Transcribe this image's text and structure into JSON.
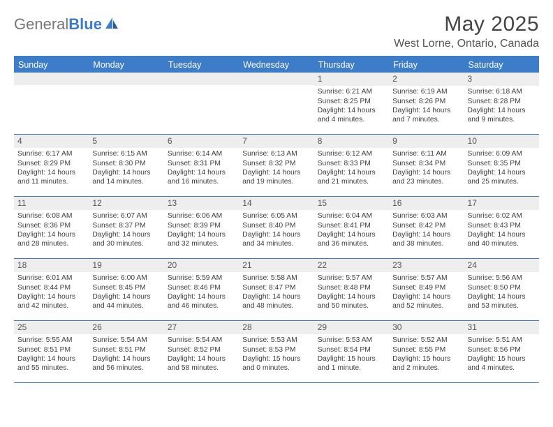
{
  "brand": {
    "part1": "General",
    "part2": "Blue"
  },
  "title": "May 2025",
  "location": "West Lorne, Ontario, Canada",
  "colors": {
    "accent": "#3d7cc9",
    "headerText": "#ffffff",
    "dayNumBg": "#eeeeee",
    "text": "#3d3d3d"
  },
  "daysOfWeek": [
    "Sunday",
    "Monday",
    "Tuesday",
    "Wednesday",
    "Thursday",
    "Friday",
    "Saturday"
  ],
  "weeks": [
    [
      {
        "n": "",
        "sr": "",
        "ss": "",
        "dl": ""
      },
      {
        "n": "",
        "sr": "",
        "ss": "",
        "dl": ""
      },
      {
        "n": "",
        "sr": "",
        "ss": "",
        "dl": ""
      },
      {
        "n": "",
        "sr": "",
        "ss": "",
        "dl": ""
      },
      {
        "n": "1",
        "sr": "Sunrise: 6:21 AM",
        "ss": "Sunset: 8:25 PM",
        "dl": "Daylight: 14 hours and 4 minutes."
      },
      {
        "n": "2",
        "sr": "Sunrise: 6:19 AM",
        "ss": "Sunset: 8:26 PM",
        "dl": "Daylight: 14 hours and 7 minutes."
      },
      {
        "n": "3",
        "sr": "Sunrise: 6:18 AM",
        "ss": "Sunset: 8:28 PM",
        "dl": "Daylight: 14 hours and 9 minutes."
      }
    ],
    [
      {
        "n": "4",
        "sr": "Sunrise: 6:17 AM",
        "ss": "Sunset: 8:29 PM",
        "dl": "Daylight: 14 hours and 11 minutes."
      },
      {
        "n": "5",
        "sr": "Sunrise: 6:15 AM",
        "ss": "Sunset: 8:30 PM",
        "dl": "Daylight: 14 hours and 14 minutes."
      },
      {
        "n": "6",
        "sr": "Sunrise: 6:14 AM",
        "ss": "Sunset: 8:31 PM",
        "dl": "Daylight: 14 hours and 16 minutes."
      },
      {
        "n": "7",
        "sr": "Sunrise: 6:13 AM",
        "ss": "Sunset: 8:32 PM",
        "dl": "Daylight: 14 hours and 19 minutes."
      },
      {
        "n": "8",
        "sr": "Sunrise: 6:12 AM",
        "ss": "Sunset: 8:33 PM",
        "dl": "Daylight: 14 hours and 21 minutes."
      },
      {
        "n": "9",
        "sr": "Sunrise: 6:11 AM",
        "ss": "Sunset: 8:34 PM",
        "dl": "Daylight: 14 hours and 23 minutes."
      },
      {
        "n": "10",
        "sr": "Sunrise: 6:09 AM",
        "ss": "Sunset: 8:35 PM",
        "dl": "Daylight: 14 hours and 25 minutes."
      }
    ],
    [
      {
        "n": "11",
        "sr": "Sunrise: 6:08 AM",
        "ss": "Sunset: 8:36 PM",
        "dl": "Daylight: 14 hours and 28 minutes."
      },
      {
        "n": "12",
        "sr": "Sunrise: 6:07 AM",
        "ss": "Sunset: 8:37 PM",
        "dl": "Daylight: 14 hours and 30 minutes."
      },
      {
        "n": "13",
        "sr": "Sunrise: 6:06 AM",
        "ss": "Sunset: 8:39 PM",
        "dl": "Daylight: 14 hours and 32 minutes."
      },
      {
        "n": "14",
        "sr": "Sunrise: 6:05 AM",
        "ss": "Sunset: 8:40 PM",
        "dl": "Daylight: 14 hours and 34 minutes."
      },
      {
        "n": "15",
        "sr": "Sunrise: 6:04 AM",
        "ss": "Sunset: 8:41 PM",
        "dl": "Daylight: 14 hours and 36 minutes."
      },
      {
        "n": "16",
        "sr": "Sunrise: 6:03 AM",
        "ss": "Sunset: 8:42 PM",
        "dl": "Daylight: 14 hours and 38 minutes."
      },
      {
        "n": "17",
        "sr": "Sunrise: 6:02 AM",
        "ss": "Sunset: 8:43 PM",
        "dl": "Daylight: 14 hours and 40 minutes."
      }
    ],
    [
      {
        "n": "18",
        "sr": "Sunrise: 6:01 AM",
        "ss": "Sunset: 8:44 PM",
        "dl": "Daylight: 14 hours and 42 minutes."
      },
      {
        "n": "19",
        "sr": "Sunrise: 6:00 AM",
        "ss": "Sunset: 8:45 PM",
        "dl": "Daylight: 14 hours and 44 minutes."
      },
      {
        "n": "20",
        "sr": "Sunrise: 5:59 AM",
        "ss": "Sunset: 8:46 PM",
        "dl": "Daylight: 14 hours and 46 minutes."
      },
      {
        "n": "21",
        "sr": "Sunrise: 5:58 AM",
        "ss": "Sunset: 8:47 PM",
        "dl": "Daylight: 14 hours and 48 minutes."
      },
      {
        "n": "22",
        "sr": "Sunrise: 5:57 AM",
        "ss": "Sunset: 8:48 PM",
        "dl": "Daylight: 14 hours and 50 minutes."
      },
      {
        "n": "23",
        "sr": "Sunrise: 5:57 AM",
        "ss": "Sunset: 8:49 PM",
        "dl": "Daylight: 14 hours and 52 minutes."
      },
      {
        "n": "24",
        "sr": "Sunrise: 5:56 AM",
        "ss": "Sunset: 8:50 PM",
        "dl": "Daylight: 14 hours and 53 minutes."
      }
    ],
    [
      {
        "n": "25",
        "sr": "Sunrise: 5:55 AM",
        "ss": "Sunset: 8:51 PM",
        "dl": "Daylight: 14 hours and 55 minutes."
      },
      {
        "n": "26",
        "sr": "Sunrise: 5:54 AM",
        "ss": "Sunset: 8:51 PM",
        "dl": "Daylight: 14 hours and 56 minutes."
      },
      {
        "n": "27",
        "sr": "Sunrise: 5:54 AM",
        "ss": "Sunset: 8:52 PM",
        "dl": "Daylight: 14 hours and 58 minutes."
      },
      {
        "n": "28",
        "sr": "Sunrise: 5:53 AM",
        "ss": "Sunset: 8:53 PM",
        "dl": "Daylight: 15 hours and 0 minutes."
      },
      {
        "n": "29",
        "sr": "Sunrise: 5:53 AM",
        "ss": "Sunset: 8:54 PM",
        "dl": "Daylight: 15 hours and 1 minute."
      },
      {
        "n": "30",
        "sr": "Sunrise: 5:52 AM",
        "ss": "Sunset: 8:55 PM",
        "dl": "Daylight: 15 hours and 2 minutes."
      },
      {
        "n": "31",
        "sr": "Sunrise: 5:51 AM",
        "ss": "Sunset: 8:56 PM",
        "dl": "Daylight: 15 hours and 4 minutes."
      }
    ]
  ]
}
